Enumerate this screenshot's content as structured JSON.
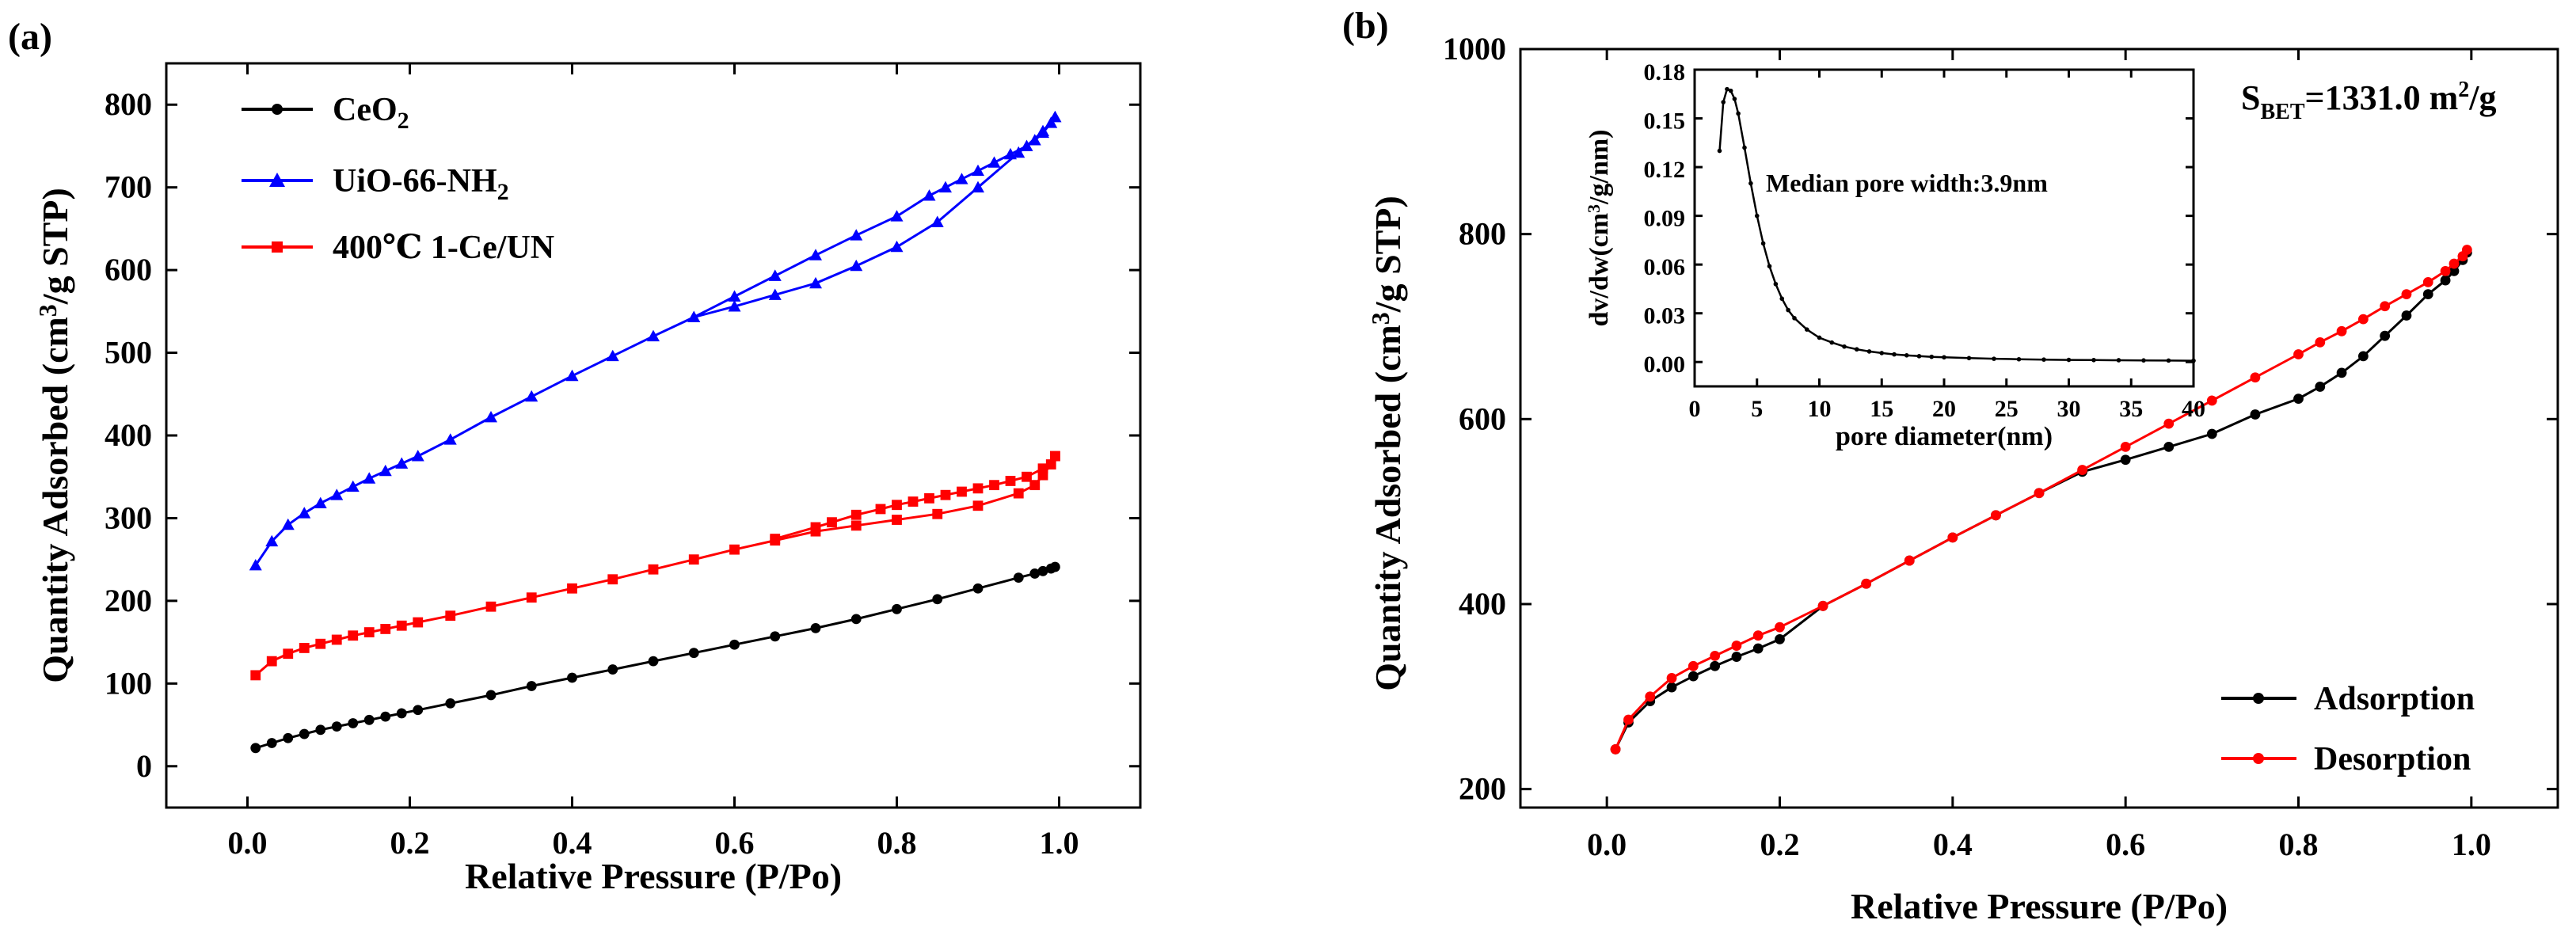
{
  "panels": {
    "a": {
      "label": "(a)"
    },
    "b": {
      "label": "(b)"
    }
  },
  "chart_data": [
    {
      "id": "a",
      "type": "line",
      "xlabel": "Relative Pressure (P/Po)",
      "ylabel": "Quantity Adsorbed (cm³/g STP)",
      "xlim": [
        -0.1,
        1.1
      ],
      "ylim": [
        -50,
        850
      ],
      "xticks": [
        0.0,
        0.2,
        0.4,
        0.6,
        0.8,
        1.0
      ],
      "xtick_labels": [
        "0.0",
        "0.2",
        "0.4",
        "0.6",
        "0.8",
        "1.0"
      ],
      "yticks": [
        0,
        100,
        200,
        300,
        400,
        500,
        600,
        700,
        800
      ],
      "ytick_labels": [
        "0",
        "100",
        "200",
        "300",
        "400",
        "500",
        "600",
        "700",
        "800"
      ],
      "legend": "top-left",
      "series": [
        {
          "name": "CeO₂",
          "color": "#000000",
          "marker": "circle",
          "x": [
            0.01,
            0.03,
            0.05,
            0.07,
            0.09,
            0.11,
            0.13,
            0.15,
            0.17,
            0.19,
            0.21,
            0.25,
            0.3,
            0.35,
            0.4,
            0.45,
            0.5,
            0.55,
            0.6,
            0.65,
            0.7,
            0.75,
            0.8,
            0.85,
            0.9,
            0.95,
            0.97,
            0.98,
            0.99,
            0.995
          ],
          "y": [
            22,
            28,
            34,
            39,
            44,
            48,
            52,
            56,
            60,
            64,
            68,
            76,
            86,
            97,
            107,
            117,
            127,
            137,
            147,
            157,
            167,
            178,
            190,
            202,
            215,
            228,
            233,
            236,
            239,
            241
          ]
        },
        {
          "name": "UiO-66-NH₂",
          "color": "#0000ff",
          "marker": "triangle",
          "x": [
            0.01,
            0.03,
            0.05,
            0.07,
            0.09,
            0.11,
            0.13,
            0.15,
            0.17,
            0.19,
            0.21,
            0.25,
            0.3,
            0.35,
            0.4,
            0.45,
            0.5,
            0.55,
            0.6,
            0.65,
            0.7,
            0.75,
            0.8,
            0.85,
            0.9,
            0.95,
            0.97,
            0.98,
            0.99,
            0.995
          ],
          "y": [
            243,
            272,
            292,
            306,
            318,
            328,
            338,
            348,
            357,
            366,
            375,
            395,
            422,
            447,
            472,
            496,
            520,
            543,
            556,
            570,
            584,
            605,
            628,
            658,
            700,
            742,
            757,
            766,
            778,
            785
          ],
          "desorption": {
            "x": [
              0.995,
              0.98,
              0.96,
              0.94,
              0.92,
              0.9,
              0.88,
              0.86,
              0.84,
              0.8,
              0.75,
              0.7,
              0.65,
              0.6,
              0.55
            ],
            "y": [
              785,
              768,
              750,
              740,
              730,
              720,
              710,
              700,
              690,
              665,
              642,
              618,
              593,
              568,
              543
            ]
          }
        },
        {
          "name": "400℃ 1-Ce/UN",
          "color": "#ff0000",
          "marker": "square",
          "x": [
            0.01,
            0.03,
            0.05,
            0.07,
            0.09,
            0.11,
            0.13,
            0.15,
            0.17,
            0.19,
            0.21,
            0.25,
            0.3,
            0.35,
            0.4,
            0.45,
            0.5,
            0.55,
            0.6,
            0.65,
            0.7,
            0.75,
            0.8,
            0.85,
            0.9,
            0.95,
            0.97,
            0.98,
            0.99,
            0.995
          ],
          "y": [
            110,
            127,
            136,
            143,
            148,
            153,
            158,
            162,
            166,
            170,
            174,
            182,
            193,
            204,
            215,
            226,
            238,
            250,
            262,
            273,
            284,
            291,
            298,
            305,
            315,
            330,
            340,
            352,
            365,
            375
          ],
          "desorption": {
            "x": [
              0.995,
              0.98,
              0.96,
              0.94,
              0.92,
              0.9,
              0.88,
              0.86,
              0.84,
              0.82,
              0.8,
              0.78,
              0.75,
              0.72,
              0.7,
              0.65
            ],
            "y": [
              375,
              360,
              350,
              345,
              340,
              336,
              332,
              328,
              324,
              320,
              316,
              311,
              304,
              295,
              289,
              275
            ]
          }
        }
      ]
    },
    {
      "id": "b",
      "type": "line",
      "xlabel": "Relative Pressure (P/Po)",
      "ylabel": "Quantity Adsorbed (cm³/g STP)",
      "xlim": [
        -0.1,
        1.1
      ],
      "ylim": [
        180,
        1000
      ],
      "xticks": [
        0.0,
        0.2,
        0.4,
        0.6,
        0.8,
        1.0
      ],
      "xtick_labels": [
        "0.0",
        "0.2",
        "0.4",
        "0.6",
        "0.8",
        "1.0"
      ],
      "yticks": [
        200,
        400,
        600,
        800,
        1000
      ],
      "ytick_labels": [
        "200",
        "400",
        "600",
        "800",
        "1000"
      ],
      "legend": "bottom-right",
      "annotation": "S_BET=1331.0 m²/g",
      "annotation_parts": {
        "s": "S",
        "sub": "BET",
        "rest": "=1331.0 m",
        "sup": "2",
        "tail": "/g"
      },
      "series": [
        {
          "name": "Adsorption",
          "color": "#000000",
          "marker": "circle",
          "x": [
            0.01,
            0.025,
            0.05,
            0.075,
            0.1,
            0.125,
            0.15,
            0.175,
            0.2,
            0.25,
            0.3,
            0.35,
            0.4,
            0.45,
            0.5,
            0.55,
            0.6,
            0.65,
            0.7,
            0.75,
            0.8,
            0.825,
            0.85,
            0.875,
            0.9,
            0.925,
            0.95,
            0.97,
            0.98,
            0.99,
            0.995
          ],
          "y": [
            243,
            272,
            295,
            310,
            322,
            333,
            343,
            352,
            362,
            398,
            422,
            447,
            472,
            496,
            520,
            543,
            556,
            570,
            584,
            605,
            622,
            635,
            650,
            668,
            690,
            712,
            735,
            750,
            760,
            772,
            780
          ]
        },
        {
          "name": "Desorption",
          "color": "#ff0000",
          "marker": "circle",
          "x": [
            0.995,
            0.99,
            0.98,
            0.97,
            0.95,
            0.925,
            0.9,
            0.875,
            0.85,
            0.825,
            0.8,
            0.75,
            0.7,
            0.65,
            0.6,
            0.55,
            0.5,
            0.45,
            0.4,
            0.35,
            0.3,
            0.25,
            0.2,
            0.175,
            0.15,
            0.125,
            0.1,
            0.075,
            0.05,
            0.025,
            0.01
          ],
          "y": [
            783,
            776,
            768,
            760,
            748,
            735,
            722,
            708,
            695,
            683,
            670,
            645,
            620,
            595,
            570,
            545,
            520,
            496,
            472,
            447,
            422,
            398,
            375,
            366,
            355,
            344,
            333,
            320,
            300,
            275,
            243
          ]
        }
      ],
      "inset": {
        "type": "line",
        "xlabel": "pore diameter(nm)",
        "ylabel": "dv/dw(cm³/g/nm)",
        "xlim": [
          0,
          40
        ],
        "ylim": [
          -0.015,
          0.18
        ],
        "xticks": [
          0,
          5,
          10,
          15,
          20,
          25,
          30,
          35,
          40
        ],
        "xtick_labels": [
          "0",
          "5",
          "10",
          "15",
          "20",
          "25",
          "30",
          "35",
          "40"
        ],
        "yticks": [
          0.0,
          0.03,
          0.06,
          0.09,
          0.12,
          0.15,
          0.18
        ],
        "ytick_labels": [
          "0.00",
          "0.03",
          "0.06",
          "0.09",
          "0.12",
          "0.15",
          "0.18"
        ],
        "annotation": "Median pore width:3.9nm",
        "series": [
          {
            "color": "#000000",
            "x": [
              2.0,
              2.3,
              2.6,
              2.9,
              3.2,
              3.5,
              4.0,
              4.5,
              5.0,
              5.5,
              6.0,
              6.5,
              7.0,
              7.5,
              8.0,
              9.0,
              10.0,
              11.0,
              12.0,
              13.0,
              14.0,
              15.0,
              16.0,
              17.0,
              18.0,
              19.0,
              20.0,
              22.0,
              24.0,
              26.0,
              28.0,
              30.0,
              32.0,
              34.0,
              36.0,
              38.0,
              40.0
            ],
            "y": [
              0.13,
              0.16,
              0.168,
              0.167,
              0.162,
              0.153,
              0.132,
              0.11,
              0.09,
              0.073,
              0.059,
              0.048,
              0.039,
              0.032,
              0.027,
              0.02,
              0.015,
              0.012,
              0.0095,
              0.0078,
              0.0065,
              0.0055,
              0.0047,
              0.0041,
              0.0036,
              0.0032,
              0.0029,
              0.0024,
              0.002,
              0.0017,
              0.0015,
              0.0013,
              0.0012,
              0.0011,
              0.001,
              0.0009,
              0.0008
            ]
          }
        ]
      }
    }
  ]
}
